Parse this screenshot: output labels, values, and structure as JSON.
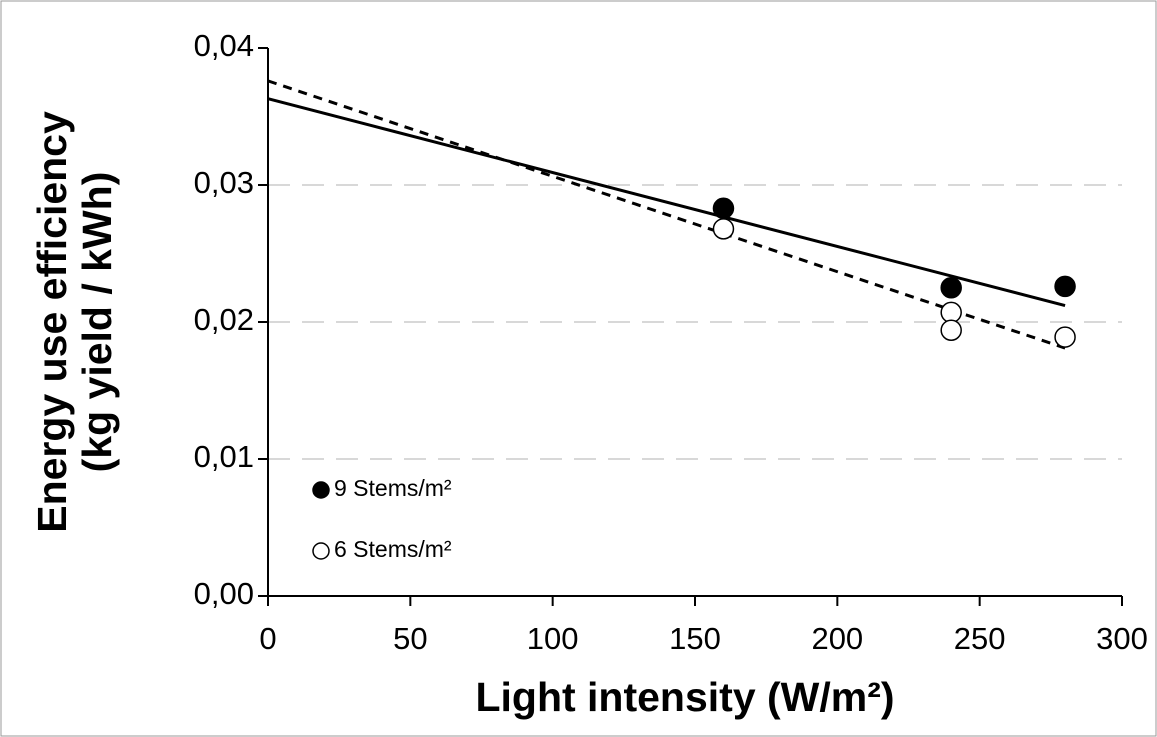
{
  "chart_data": {
    "type": "scatter",
    "x_label": "Light intensity (W/m²)",
    "y_label": [
      "Energy use efficiency",
      "(kg yield / kWh)"
    ],
    "xlim": [
      0,
      300
    ],
    "xticks": [
      0,
      50,
      100,
      150,
      200,
      250,
      300
    ],
    "ylim": [
      0,
      0.04
    ],
    "yticks": [
      {
        "value": 0,
        "label": "0,00"
      },
      {
        "value": 0.01,
        "label": "0,01"
      },
      {
        "value": 0.02,
        "label": "0,02"
      },
      {
        "value": 0.03,
        "label": "0,03"
      },
      {
        "value": 0.04,
        "label": "0,04"
      }
    ],
    "grid": true,
    "legend": "lower left",
    "series": [
      {
        "name": "9 Stems/m²",
        "color": "#000000",
        "marker": "filled",
        "x": [
          160,
          240,
          280
        ],
        "values": [
          0.0283,
          0.0225,
          0.0226
        ]
      },
      {
        "name": "6 Stems/m²",
        "color": "#000000",
        "marker": "open",
        "x": [
          160,
          240,
          240,
          280
        ],
        "values": [
          0.0268,
          0.0207,
          0.0194,
          0.0189
        ]
      }
    ],
    "trendlines": [
      {
        "style": "solid",
        "x": [
          0,
          280
        ],
        "values": [
          0.0363,
          0.0212
        ]
      },
      {
        "style": "dashed",
        "x": [
          0,
          280
        ],
        "values": [
          0.0376,
          0.0181
        ]
      }
    ]
  }
}
